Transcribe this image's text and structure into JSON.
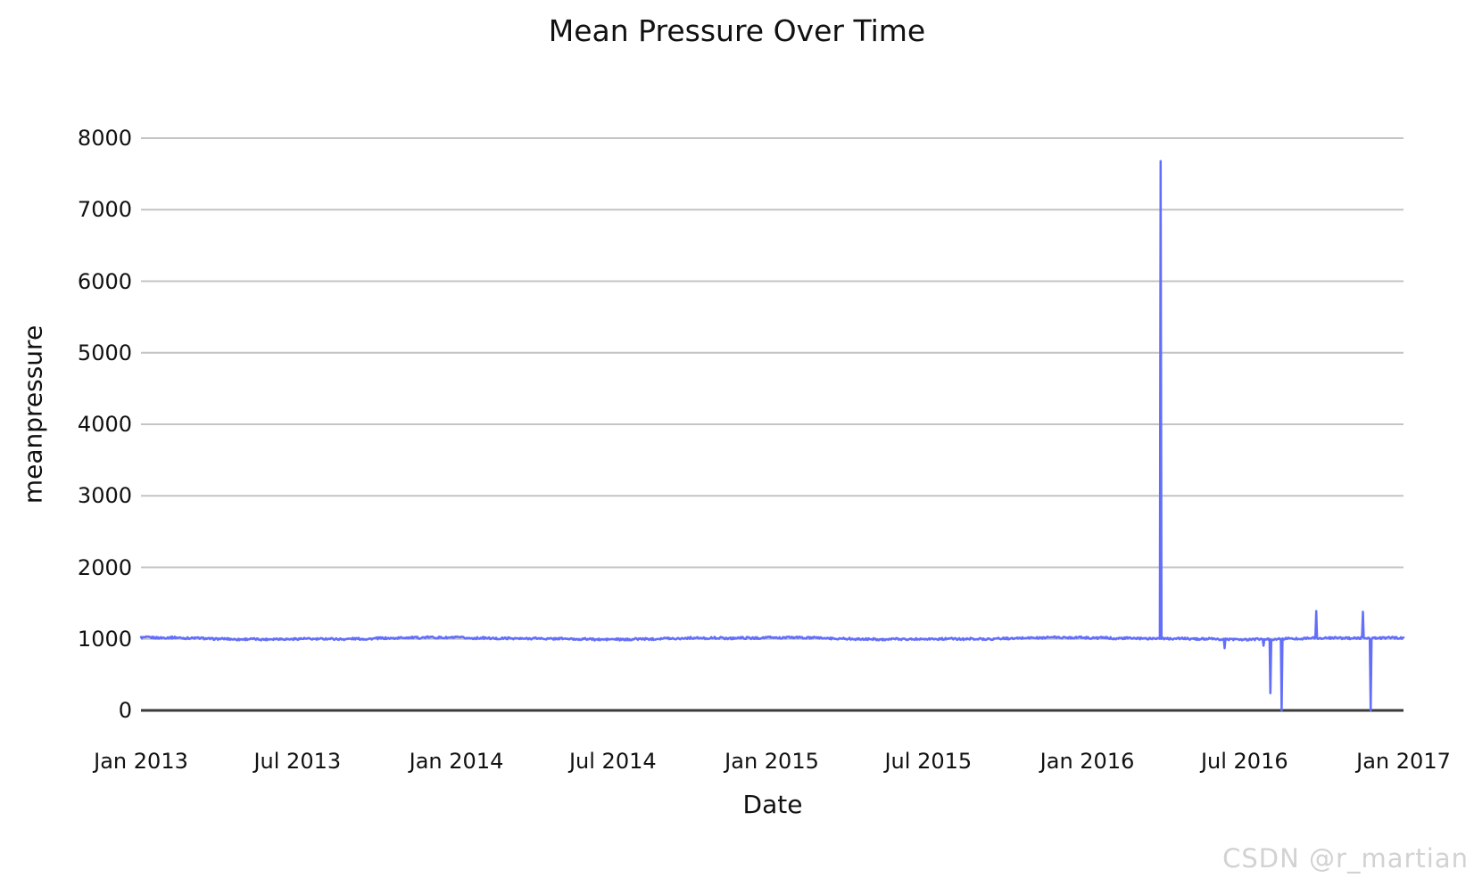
{
  "title": "Mean Pressure Over Time",
  "watermark": {
    "text": "CSDN @r_martian",
    "color": "#d2d2d2"
  },
  "chart_data": {
    "type": "line",
    "title": "Mean Pressure Over Time",
    "xlabel": "Date",
    "ylabel": "meanpressure",
    "series_name": "meanpressure",
    "line_color": "#636efa",
    "grid_color": "#c4c4c4",
    "axis_line_color": "#3a3a3a",
    "text_color": "#111111",
    "background": "#ffffff",
    "legend": "none",
    "grid": "horizontal",
    "x_start": "2013-01-01",
    "x_end": "2017-01-01",
    "ylim": [
      0,
      8000
    ],
    "yticks": [
      0,
      1000,
      2000,
      3000,
      4000,
      5000,
      6000,
      7000,
      8000
    ],
    "xticks": [
      {
        "label": "Jan 2013",
        "date": "2013-01-01"
      },
      {
        "label": "Jul 2013",
        "date": "2013-07-01"
      },
      {
        "label": "Jan 2014",
        "date": "2014-01-01"
      },
      {
        "label": "Jul 2014",
        "date": "2014-07-01"
      },
      {
        "label": "Jan 2015",
        "date": "2015-01-01"
      },
      {
        "label": "Jul 2015",
        "date": "2015-07-01"
      },
      {
        "label": "Jan 2016",
        "date": "2016-01-01"
      },
      {
        "label": "Jul 2016",
        "date": "2016-07-01"
      },
      {
        "label": "Jan 2017",
        "date": "2017-01-01"
      }
    ],
    "baseline_level": 1000,
    "seasonal_baseline_by_month": [
      1017,
      1014,
      1009,
      1003,
      998,
      996,
      995,
      998,
      1002,
      1008,
      1013,
      1016
    ],
    "daily_jitter_amplitude": 14,
    "anomalies": [
      {
        "date": "2016-03-26",
        "value": 7679
      },
      {
        "date": "2016-06-08",
        "value": 870
      },
      {
        "date": "2016-07-23",
        "value": 905
      },
      {
        "date": "2016-07-31",
        "value": 240
      },
      {
        "date": "2016-08-13",
        "value": 0
      },
      {
        "date": "2016-09-22",
        "value": 1390
      },
      {
        "date": "2016-11-15",
        "value": 1380
      },
      {
        "date": "2016-11-24",
        "value": 0
      }
    ]
  }
}
